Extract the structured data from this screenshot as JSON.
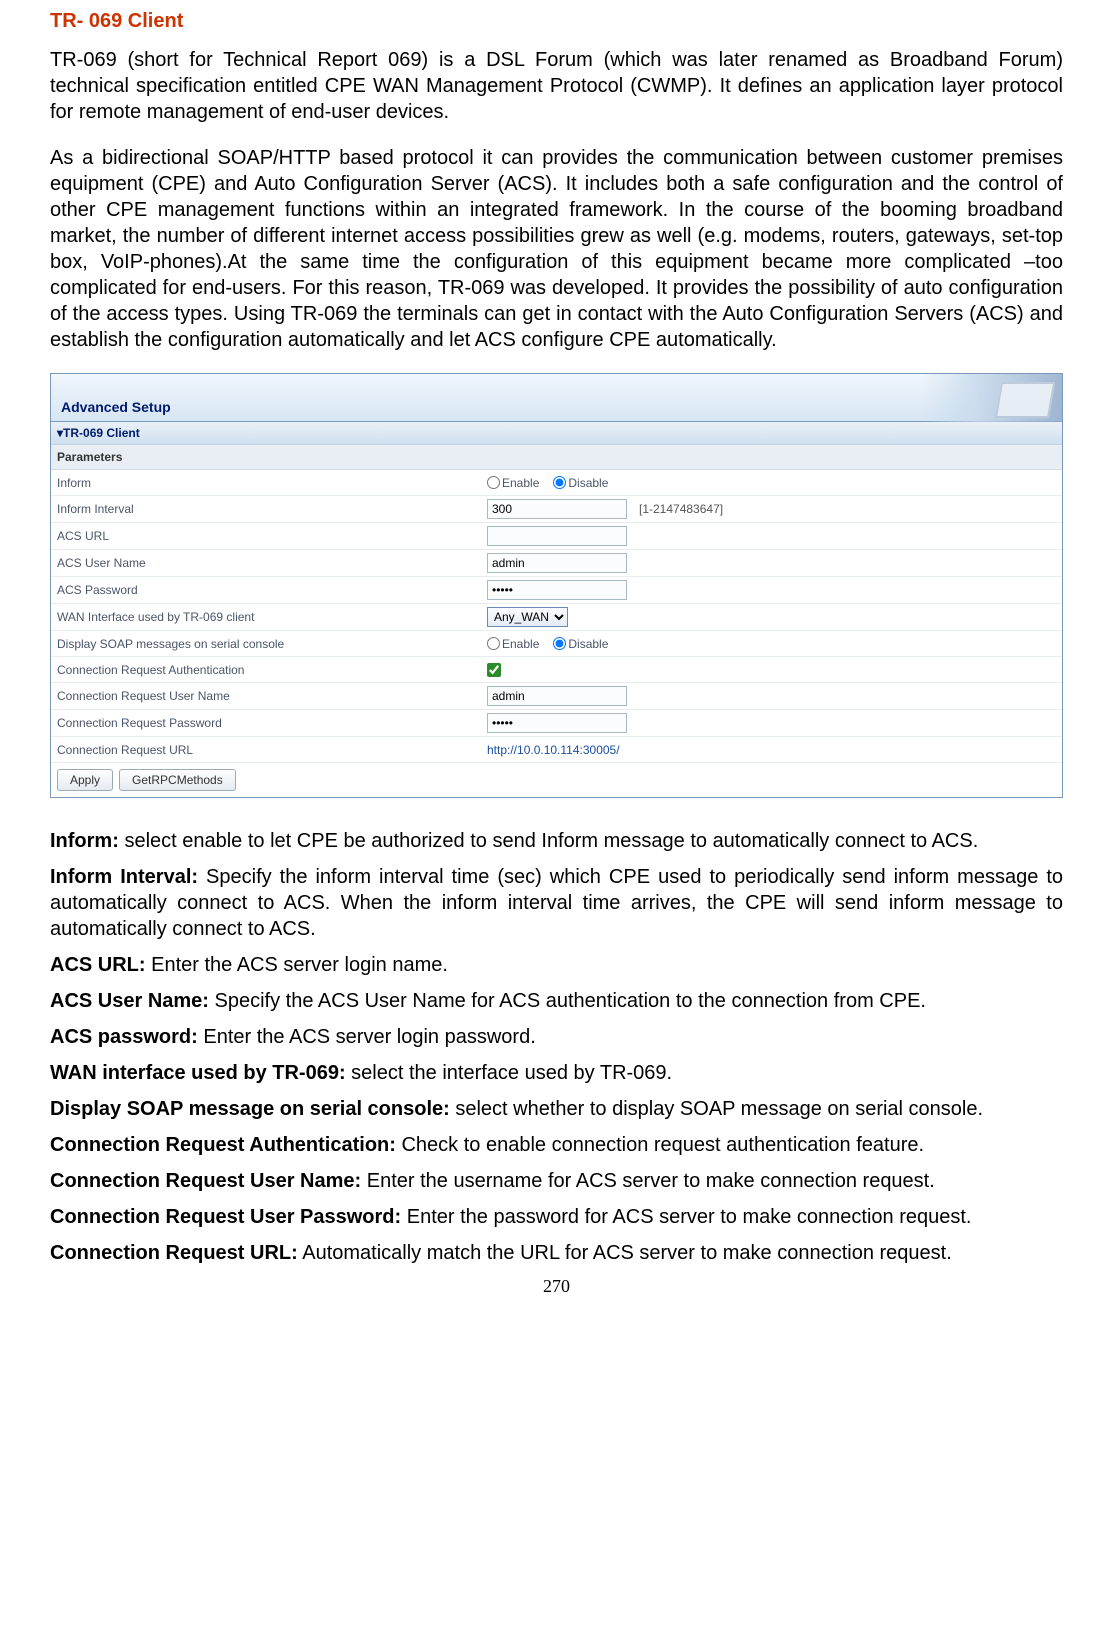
{
  "title": "TR- 069 Client",
  "para1": "TR-069 (short for Technical Report 069) is a DSL Forum (which was later renamed as Broadband Forum) technical specification entitled CPE WAN Management Protocol (CWMP). It defines an application layer protocol for remote management of end-user devices.",
  "para2": "As a bidirectional SOAP/HTTP based protocol it can provides the communication between customer premises equipment (CPE) and Auto Configuration Server (ACS). It includes both a safe configuration and the control of other CPE management functions within an integrated framework. In the course of the booming broadband market, the number of different internet access possibilities grew as well (e.g. modems, routers, gateways, set-top box, VoIP-phones).At the same time the configuration of this equipment became more complicated –too complicated for end-users. For this reason, TR-069 was developed. It provides the possibility of auto configuration of the access types. Using TR-069 the terminals can get in contact with the Auto Configuration Servers (ACS) and establish the configuration automatically and let ACS configure CPE automatically.",
  "ui": {
    "header": "Advanced Setup",
    "section": "▾TR-069 Client",
    "params": "Parameters",
    "rows": {
      "inform": {
        "label": "Inform",
        "enable": "Enable",
        "disable": "Disable"
      },
      "interval": {
        "label": "Inform Interval",
        "value": "300",
        "hint": "[1-2147483647]"
      },
      "acs_url": {
        "label": "ACS URL",
        "value": ""
      },
      "acs_user": {
        "label": "ACS User Name",
        "value": "admin"
      },
      "acs_pass": {
        "label": "ACS Password",
        "value": "•••••"
      },
      "wan": {
        "label": "WAN Interface used by TR-069 client",
        "value": "Any_WAN"
      },
      "soap": {
        "label": "Display SOAP messages on serial console",
        "enable": "Enable",
        "disable": "Disable"
      },
      "conn_auth": {
        "label": "Connection Request Authentication"
      },
      "conn_user": {
        "label": "Connection Request User Name",
        "value": "admin"
      },
      "conn_pass": {
        "label": "Connection Request Password",
        "value": "•••••"
      },
      "conn_url": {
        "label": "Connection Request URL",
        "value": "http://10.0.10.114:30005/"
      }
    },
    "buttons": {
      "apply": "Apply",
      "rpc": "GetRPCMethods"
    }
  },
  "defs": {
    "d1_b": "Inform:",
    "d1_t": " select enable to let CPE be authorized to send Inform message to automatically connect to ACS.",
    "d2_b": "Inform Interval:",
    "d2_t": " Specify the inform interval time (sec) which CPE used to periodically send inform message to automatically connect to ACS. When the inform interval time arrives, the CPE will send inform message to automatically connect to ACS.",
    "d3_b": "ACS URL:",
    "d3_t": " Enter the ACS server login name.",
    "d4_b": "ACS User Name:",
    "d4_t": " Specify the ACS User Name for ACS authentication to the connection from CPE.",
    "d5_b": "ACS password:",
    "d5_t": " Enter the ACS server login password.",
    "d6_b": "WAN interface used by TR-069:",
    "d6_t": " select the interface used by TR-069.",
    "d7_b": "Display SOAP message on serial console:",
    "d7_t": " select whether to display SOAP message on serial console.",
    "d8_b": "Connection Request Authentication:",
    "d8_t": " Check to enable connection request authentication feature.",
    "d9_b": "Connection Request User Name:",
    "d9_t": " Enter the username for ACS server to make connection request.",
    "d10_b": "Connection Request User Password:",
    "d10_t": " Enter the password for ACS server to make connection request.",
    "d11_b": "Connection Request URL:",
    "d11_t": " Automatically match the URL for ACS server to make connection request."
  },
  "page_num": "270"
}
